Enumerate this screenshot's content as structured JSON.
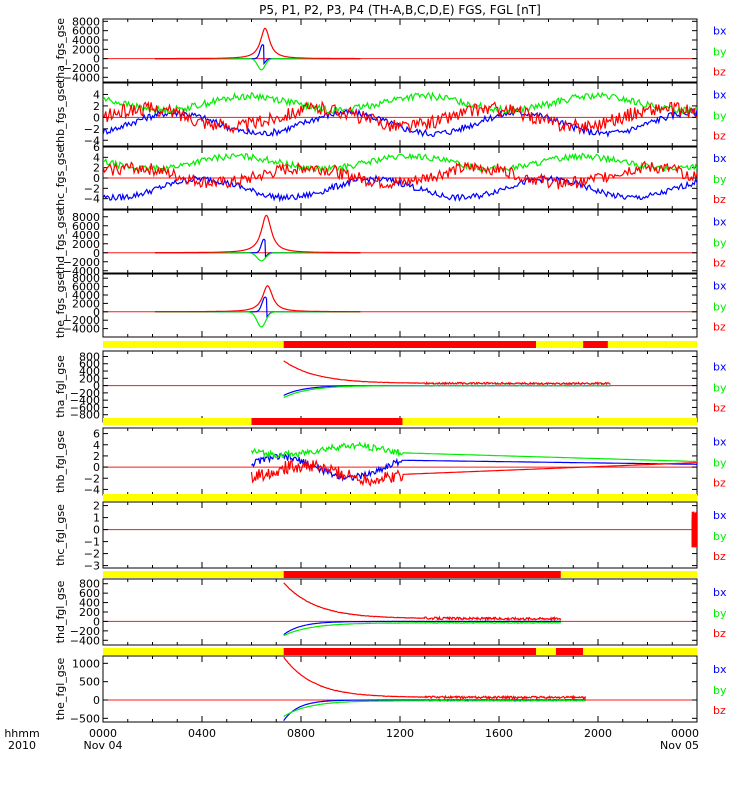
{
  "title": "P5, P1, P2, P3, P4 (TH-A,B,C,D,E) FGS, FGL [nT]",
  "legend_colors": {
    "bz": "#ff0000",
    "by": "#00ee00",
    "bx": "#0000ff"
  },
  "time_axis": {
    "row1_labels": [
      "hhmm",
      "0000",
      "0400",
      "0800",
      "1200",
      "1600",
      "2000",
      "0000"
    ],
    "row2_labels": [
      "2010",
      "Nov 04",
      "Nov 05"
    ],
    "hours": [
      0,
      4,
      8,
      12,
      16,
      20,
      24
    ]
  },
  "chart_data": [
    {
      "type": "line",
      "name": "tha_fgs_gse",
      "ylabel": "tha_fgs_gse",
      "ylim": [
        -5000,
        8500
      ],
      "ticks": [
        -4000,
        -2000,
        0,
        2000,
        4000,
        6000,
        8000
      ],
      "tick_labels": [
        "−4000",
        "−2000",
        "0",
        "2000",
        "4000",
        "6000",
        "8000"
      ],
      "legend": [
        "bz",
        "by",
        "bx"
      ],
      "data_range_h": [
        2.1,
        10.4
      ],
      "series": [
        {
          "name": "bz",
          "color": "#ff0000",
          "shape": "spike",
          "base": 0,
          "amp": 6500,
          "center": 6.55,
          "width": 0.55,
          "noise": 0
        },
        {
          "name": "by",
          "color": "#00ee00",
          "shape": "dip",
          "base": 0,
          "amp": -2400,
          "center": 6.4,
          "width": 0.3,
          "noise": 0
        },
        {
          "name": "bx",
          "color": "#0000ff",
          "shape": "bipolar",
          "base": 0,
          "amp": 3000,
          "center": 6.45,
          "width": 0.25,
          "noise": 0
        }
      ]
    },
    {
      "type": "line",
      "name": "thb_fgs_gse",
      "ylabel": "thb_fgs_gse",
      "ylim": [
        -5,
        6
      ],
      "ticks": [
        -4,
        -2,
        0,
        2,
        4
      ],
      "tick_labels": [
        "−4",
        "−2",
        "0",
        "2",
        "4"
      ],
      "legend": [
        "bz",
        "by",
        "bx"
      ],
      "data_range_h": [
        0,
        24
      ],
      "series": [
        {
          "name": "bz",
          "color": "#ff0000",
          "shape": "noisy",
          "base": 0,
          "amp": 1.5,
          "noise": 1.2
        },
        {
          "name": "by",
          "color": "#00ee00",
          "shape": "noisy",
          "base": 2.5,
          "amp": 1.2,
          "noise": 0.6
        },
        {
          "name": "bx",
          "color": "#0000ff",
          "shape": "noisy",
          "base": -1,
          "amp": 1.8,
          "noise": 0.6
        }
      ]
    },
    {
      "type": "line",
      "name": "thc_fgs_gse",
      "ylabel": "thc_fgs_gse",
      "ylim": [
        -6,
        6
      ],
      "ticks": [
        -4,
        -2,
        0,
        2,
        4,
        6
      ],
      "tick_labels": [
        "−4",
        "−2",
        "0",
        "2",
        "4",
        "6"
      ],
      "legend": [
        "bz",
        "by",
        "bx"
      ],
      "data_range_h": [
        0,
        24
      ],
      "series": [
        {
          "name": "bz",
          "color": "#ff0000",
          "shape": "noisy",
          "base": 0.5,
          "amp": 1.5,
          "noise": 1.2
        },
        {
          "name": "by",
          "color": "#00ee00",
          "shape": "noisy",
          "base": 3,
          "amp": 1.2,
          "noise": 0.6
        },
        {
          "name": "bx",
          "color": "#0000ff",
          "shape": "noisy",
          "base": -2,
          "amp": 1.8,
          "noise": 0.6
        }
      ]
    },
    {
      "type": "line",
      "name": "thd_fgs_gse",
      "ylabel": "thd_fgs_gse",
      "ylim": [
        -4500,
        9500
      ],
      "ticks": [
        -4000,
        -2000,
        0,
        2000,
        4000,
        6000,
        8000
      ],
      "tick_labels": [
        "−4000",
        "−2000",
        "0",
        "2000",
        "4000",
        "6000",
        "8000"
      ],
      "legend": [
        "bz",
        "by",
        "bx"
      ],
      "data_range_h": [
        2.1,
        10.4
      ],
      "series": [
        {
          "name": "bz",
          "color": "#ff0000",
          "shape": "spike",
          "base": 0,
          "amp": 8300,
          "center": 6.6,
          "width": 0.6,
          "noise": 0
        },
        {
          "name": "by",
          "color": "#00ee00",
          "shape": "dip",
          "base": 0,
          "amp": -1800,
          "center": 6.4,
          "width": 0.35,
          "noise": 0
        },
        {
          "name": "bx",
          "color": "#0000ff",
          "shape": "bipolar",
          "base": 0,
          "amp": 3000,
          "center": 6.5,
          "width": 0.25,
          "noise": 0
        }
      ]
    },
    {
      "type": "line",
      "name": "the_fgs_gse",
      "ylabel": "the_fgs_gse",
      "ylim": [
        -6000,
        9000
      ],
      "ticks": [
        -4000,
        -2000,
        0,
        2000,
        4000,
        6000,
        8000
      ],
      "tick_labels": [
        "−4000",
        "−2000",
        "0",
        "2000",
        "4000",
        "6000",
        "8000"
      ],
      "legend": [
        "bz",
        "by",
        "bx"
      ],
      "data_range_h": [
        2.1,
        10.4
      ],
      "series": [
        {
          "name": "bz",
          "color": "#ff0000",
          "shape": "spike",
          "base": 0,
          "amp": 6200,
          "center": 6.65,
          "width": 0.6,
          "noise": 0
        },
        {
          "name": "by",
          "color": "#00ee00",
          "shape": "dip",
          "base": 0,
          "amp": -3600,
          "center": 6.4,
          "width": 0.35,
          "noise": 0
        },
        {
          "name": "bx",
          "color": "#0000ff",
          "shape": "bipolar",
          "base": 0,
          "amp": 3500,
          "center": 6.55,
          "width": 0.3,
          "noise": 0
        }
      ]
    },
    {
      "type": "line",
      "name": "tha_fgl_gse",
      "ylabel": "tha_fgl_gse",
      "ylim": [
        -1000,
        950
      ],
      "ticks": [
        -800,
        -600,
        -400,
        -200,
        0,
        200,
        400,
        600,
        800
      ],
      "tick_labels": [
        "−800",
        "−600",
        "−400",
        "−200",
        "0",
        "200",
        "400",
        "600",
        "800"
      ],
      "legend": [
        "bz",
        "by",
        "bx"
      ],
      "data_range_h": [
        7.3,
        20.5
      ],
      "bar": [
        {
          "from": 0,
          "to": 7.3,
          "color": "#ffff00"
        },
        {
          "from": 7.3,
          "to": 17.5,
          "color": "#ff0000"
        },
        {
          "from": 17.5,
          "to": 19.4,
          "color": "#ffff00"
        },
        {
          "from": 19.4,
          "to": 20.4,
          "color": "#ff0000"
        },
        {
          "from": 20.4,
          "to": 24,
          "color": "#ffff00"
        }
      ],
      "series": [
        {
          "name": "bz",
          "color": "#ff0000",
          "shape": "decay",
          "base": 60,
          "amp": 620,
          "tau": 1.3,
          "noise": 25
        },
        {
          "name": "by",
          "color": "#00ee00",
          "shape": "decay",
          "base": 0,
          "amp": -330,
          "tau": 1.0,
          "noise": 8
        },
        {
          "name": "bx",
          "color": "#0000ff",
          "shape": "decay",
          "base": 0,
          "amp": -270,
          "tau": 0.8,
          "noise": 5
        }
      ]
    },
    {
      "type": "line",
      "name": "thb_fgl_gse",
      "ylabel": "thb_fgl_gse",
      "ylim": [
        -5,
        7
      ],
      "ticks": [
        -4,
        -2,
        0,
        2,
        4,
        6
      ],
      "tick_labels": [
        "−4",
        "−2",
        "0",
        "2",
        "4",
        "6"
      ],
      "legend": [
        "bz",
        "by",
        "bx"
      ],
      "data_range_h": [
        6,
        24
      ],
      "bar": [
        {
          "from": 0,
          "to": 6,
          "color": "#ffff00"
        },
        {
          "from": 6,
          "to": 12.1,
          "color": "#ff0000"
        },
        {
          "from": 12.1,
          "to": 24,
          "color": "#ffff00"
        }
      ],
      "series": [
        {
          "name": "bz",
          "color": "#ff0000",
          "shape": "noisy_then_line",
          "base": -1,
          "amp": 1.2,
          "noise": 1.2,
          "end": 12.1,
          "line_to": 0.8
        },
        {
          "name": "by",
          "color": "#00ee00",
          "shape": "noisy_then_line",
          "base": 3,
          "amp": 0.8,
          "noise": 0.6,
          "end": 12.1,
          "line_to": 1.0
        },
        {
          "name": "bx",
          "color": "#0000ff",
          "shape": "noisy_then_line",
          "base": 0,
          "amp": 1.8,
          "noise": 0.6,
          "end": 12.1,
          "line_to": 0.5
        }
      ]
    },
    {
      "type": "line",
      "name": "thc_fgl_gse",
      "ylabel": "thc_fgl_gse",
      "ylim": [
        -3.2,
        2.3
      ],
      "ticks": [
        -3,
        -2,
        -1,
        0,
        1,
        2
      ],
      "tick_labels": [
        "−3",
        "−2",
        "−1",
        "0",
        "1",
        "2"
      ],
      "legend": [
        "bz",
        "by",
        "bx"
      ],
      "data_range_h": [
        23.8,
        24
      ],
      "bar": [
        {
          "from": 0,
          "to": 24,
          "color": "#ffff00"
        }
      ],
      "series": [
        {
          "name": "bz",
          "color": "#ff0000",
          "shape": "edge",
          "base": 0,
          "amp": 1.5,
          "noise": 1
        },
        {
          "name": "by",
          "color": "#00ee00",
          "shape": "edge",
          "base": 0,
          "amp": 1,
          "noise": 1
        },
        {
          "name": "bx",
          "color": "#0000ff",
          "shape": "edge",
          "base": 0,
          "amp": 1,
          "noise": 1
        }
      ]
    },
    {
      "type": "line",
      "name": "thd_fgl_gse",
      "ylabel": "thd_fgl_gse",
      "ylim": [
        -500,
        900
      ],
      "ticks": [
        -400,
        -200,
        0,
        200,
        400,
        600,
        800
      ],
      "tick_labels": [
        "−400",
        "−200",
        "0",
        "200",
        "400",
        "600",
        "800"
      ],
      "legend": [
        "bz",
        "by",
        "bx"
      ],
      "data_range_h": [
        7.3,
        18.5
      ],
      "bar": [
        {
          "from": 0,
          "to": 7.3,
          "color": "#ffff00"
        },
        {
          "from": 7.3,
          "to": 18.5,
          "color": "#ff0000"
        },
        {
          "from": 18.5,
          "to": 24,
          "color": "#ffff00"
        }
      ],
      "series": [
        {
          "name": "bz",
          "color": "#ff0000",
          "shape": "decay",
          "base": 60,
          "amp": 760,
          "tau": 1.3,
          "noise": 25
        },
        {
          "name": "by",
          "color": "#00ee00",
          "shape": "decay",
          "base": -30,
          "amp": -270,
          "tau": 1.1,
          "noise": 8
        },
        {
          "name": "bx",
          "color": "#0000ff",
          "shape": "decay",
          "base": 0,
          "amp": -280,
          "tau": 0.7,
          "noise": 5
        }
      ]
    },
    {
      "type": "line",
      "name": "the_fgl_gse",
      "ylabel": "the_fgl_gse",
      "ylim": [
        -600,
        1200
      ],
      "ticks": [
        -500,
        0,
        500,
        1000
      ],
      "tick_labels": [
        "−500",
        "0",
        "500",
        "1000"
      ],
      "legend": [
        "bz",
        "by",
        "bx"
      ],
      "data_range_h": [
        7.3,
        19.5
      ],
      "bar": [
        {
          "from": 0,
          "to": 7.3,
          "color": "#ffff00"
        },
        {
          "from": 7.3,
          "to": 17.5,
          "color": "#ff0000"
        },
        {
          "from": 17.5,
          "to": 18.3,
          "color": "#ffff00"
        },
        {
          "from": 18.3,
          "to": 19.4,
          "color": "#ff0000"
        },
        {
          "from": 19.4,
          "to": 24,
          "color": "#ffff00"
        }
      ],
      "series": [
        {
          "name": "bz",
          "color": "#ff0000",
          "shape": "decay",
          "base": 70,
          "amp": 1100,
          "tau": 1.2,
          "noise": 30
        },
        {
          "name": "by",
          "color": "#00ee00",
          "shape": "decay",
          "base": -20,
          "amp": -430,
          "tau": 1.0,
          "noise": 10
        },
        {
          "name": "bx",
          "color": "#0000ff",
          "shape": "decay",
          "base": 0,
          "amp": -560,
          "tau": 0.6,
          "noise": 5
        }
      ]
    }
  ]
}
